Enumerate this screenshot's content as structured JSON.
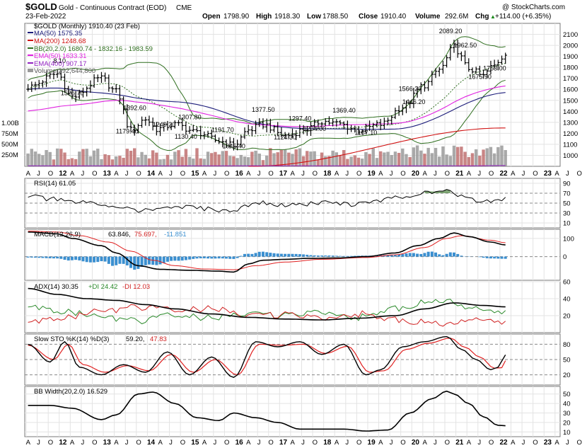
{
  "header": {
    "symbol": "$GOLD",
    "name": "Gold - Continuous Contract (EOD)",
    "exchange": "CME",
    "copyright": "@ StockCharts.com",
    "date": "23-Feb-2022",
    "open_label": "Open",
    "open": "1798.90",
    "high_label": "High",
    "high": "1918.30",
    "low_label": "Low",
    "low": "1788.50",
    "close_label": "Close",
    "close": "1910.40",
    "volume_label": "Volume",
    "volume": "292.6M",
    "chg_label": "Chg",
    "chg": "+114.00 (+6.35%)",
    "chg_arrow": "▲"
  },
  "legend": {
    "price": "$GOLD (Monthly) 1910.40 (23 Feb)",
    "ma50": "MA(50) 1575.35",
    "ma200": "MA(200) 1248.68",
    "bb": "BB(20,2.0) 1680.74 - 1832.16 - 1983.59",
    "ema50": "EMA(50) 1633.31",
    "ema400": "EMA(400) 907.17",
    "volume": "Volume 292,644,800",
    "rsi": "RSI(14) 61.05",
    "macd_name": "MACD(12,26,9)",
    "macd_v1": "63.846,",
    "macd_v2": "75.697,",
    "macd_v3": "-11.851",
    "adx_name": "ADX(14) 30.35",
    "adx_pdi": "+DI 24.42",
    "adx_mdi": "-DI 12.03",
    "sto_name": "Slow STO %K(14) %D(3)",
    "sto_k": "59.20,",
    "sto_d": "47.83",
    "bbw": "BB Width(20,2.0) 16.529"
  },
  "colors": {
    "price": "#000000",
    "ma50": "#1c1c7a",
    "ma200": "#d01010",
    "bb": "#2e6e1e",
    "ema50": "#e020e0",
    "ema400": "#9020c0",
    "volume_up": "#9a9a9a",
    "volume_down": "#c07070",
    "signal": "#e02020",
    "hist": "#3a8fd0",
    "pdi": "#2a8a2a",
    "mdi": "#d02020"
  },
  "chart_data": [
    {
      "type": "line",
      "panel": "price",
      "ylim": [
        900,
        2200
      ],
      "y_ticks": [
        1000,
        1100,
        1200,
        1300,
        1400,
        1500,
        1600,
        1700,
        1800,
        1900,
        2000,
        2100
      ],
      "volume_ticks": [
        "1.00B",
        "750M",
        "500M",
        "250M"
      ],
      "x_month_labels": [
        "A",
        "J",
        "O",
        "12",
        "A",
        "J",
        "O",
        "13",
        "A",
        "J",
        "O",
        "14",
        "A",
        "J",
        "O",
        "15",
        "A",
        "J",
        "O",
        "16",
        "A",
        "J",
        "O",
        "17",
        "A",
        "J",
        "O",
        "18",
        "A",
        "J",
        "O",
        "19",
        "A",
        "J",
        "O",
        "20",
        "A",
        "J",
        "O",
        "21",
        "A",
        "J",
        "O",
        "22",
        "A",
        "J",
        "O",
        "23",
        "A",
        "J",
        "O"
      ],
      "close_anchor_times": [
        0,
        8,
        12,
        20,
        24,
        28,
        32,
        35,
        40,
        46,
        52,
        56,
        60,
        64,
        70,
        76,
        80,
        84,
        90,
        96,
        102,
        108,
        112,
        116,
        120,
        124,
        126,
        130
      ],
      "close_anchor_values": [
        1620,
        1740,
        1530,
        1700,
        1580,
        1230,
        1330,
        1240,
        1280,
        1210,
        1130,
        1090,
        1230,
        1280,
        1180,
        1240,
        1310,
        1290,
        1230,
        1280,
        1440,
        1640,
        1780,
        1980,
        1790,
        1720,
        1800,
        1910
      ],
      "price_annotations": [
        {
          "label": "1526.70",
          "t": 12,
          "v": 1526.7
        },
        {
          "label": "1392.60",
          "t": 29,
          "v": 1392.6
        },
        {
          "label": "1179.40",
          "t": 27,
          "v": 1179.4
        },
        {
          "label": "1240.20",
          "t": 37,
          "v": 1240.2
        },
        {
          "label": "1307.80",
          "t": 44,
          "v": 1307.8
        },
        {
          "label": "1130.40",
          "t": 43,
          "v": 1130.4
        },
        {
          "label": "1191.70",
          "t": 53,
          "v": 1191.7
        },
        {
          "label": "1045.40",
          "t": 56,
          "v": 1045.4
        },
        {
          "label": "1377.50",
          "t": 64,
          "v": 1377.5
        },
        {
          "label": "1124.30",
          "t": 70,
          "v": 1124.3
        },
        {
          "label": "1297.40",
          "t": 74,
          "v": 1297.4
        },
        {
          "label": "1204.00",
          "t": 78,
          "v": 1204.0
        },
        {
          "label": "1369.40",
          "t": 86,
          "v": 1369.4
        },
        {
          "label": "1167.10",
          "t": 92,
          "v": 1167.1
        },
        {
          "label": "1446.20",
          "t": 105,
          "v": 1446.2
        },
        {
          "label": "1566.20",
          "t": 104,
          "v": 1566.2
        },
        {
          "label": "2089.20",
          "t": 115,
          "v": 2089.2
        },
        {
          "label": "1962.50",
          "t": 119,
          "v": 1962.5
        },
        {
          "label": "1675.90",
          "t": 123,
          "v": 1675.9
        },
        {
          "label": "1753.00",
          "t": 127,
          "v": 1753.0
        },
        {
          "label": "8.10",
          "t": 10,
          "v": 1820
        }
      ]
    },
    {
      "type": "line",
      "panel": "rsi",
      "name": "RSI(14)",
      "ylim": [
        0,
        100
      ],
      "y_ticks": [
        90,
        70,
        50,
        30,
        10
      ],
      "anchor_times": [
        0,
        6,
        12,
        24,
        30,
        40,
        50,
        56,
        62,
        70,
        80,
        90,
        100,
        108,
        114,
        118,
        124,
        128,
        130
      ],
      "anchor_values": [
        65,
        58,
        52,
        45,
        35,
        42,
        38,
        33,
        52,
        45,
        50,
        48,
        60,
        72,
        78,
        62,
        52,
        55,
        61.05
      ]
    },
    {
      "type": "line",
      "panel": "macd",
      "name": "MACD(12,26,9)",
      "ylim": [
        -130,
        150
      ],
      "y_ticks": [
        100,
        0
      ],
      "macd_times": [
        0,
        8,
        12,
        20,
        24,
        30,
        36,
        44,
        52,
        56,
        60,
        64,
        70,
        76,
        84,
        92,
        100,
        106,
        112,
        116,
        120,
        126,
        130
      ],
      "macd_values": [
        135,
        125,
        100,
        60,
        20,
        -50,
        -70,
        -75,
        -80,
        -85,
        -40,
        -20,
        -15,
        -10,
        -8,
        0,
        20,
        60,
        100,
        130,
        110,
        80,
        64
      ],
      "signal_times": [
        0,
        8,
        14,
        22,
        28,
        34,
        40,
        48,
        56,
        62,
        70,
        80,
        92,
        100,
        108,
        114,
        118,
        126,
        130
      ],
      "signal_values": [
        140,
        135,
        115,
        80,
        30,
        -20,
        -50,
        -68,
        -72,
        -50,
        -30,
        -15,
        -5,
        10,
        50,
        100,
        115,
        90,
        76
      ]
    },
    {
      "type": "line",
      "panel": "adx",
      "name": "ADX(14)",
      "ylim": [
        0,
        60
      ],
      "y_ticks": [
        60,
        40,
        20
      ],
      "adx_times": [
        0,
        8,
        16,
        24,
        32,
        40,
        50,
        60,
        70,
        80,
        90,
        100,
        108,
        116,
        124,
        130
      ],
      "adx_values": [
        52,
        45,
        40,
        38,
        33,
        28,
        22,
        18,
        16,
        15,
        17,
        20,
        28,
        35,
        32,
        30.35
      ],
      "pdi_times": [
        0,
        10,
        20,
        30,
        40,
        50,
        60,
        70,
        80,
        90,
        100,
        108,
        114,
        120,
        126,
        130
      ],
      "pdi_values": [
        30,
        25,
        18,
        14,
        20,
        17,
        22,
        20,
        25,
        18,
        28,
        35,
        38,
        28,
        24,
        24.42
      ],
      "mdi_times": [
        0,
        10,
        20,
        30,
        40,
        50,
        60,
        70,
        80,
        90,
        100,
        108,
        114,
        120,
        126,
        130
      ],
      "mdi_values": [
        12,
        18,
        25,
        30,
        26,
        28,
        20,
        21,
        18,
        22,
        15,
        12,
        10,
        14,
        13,
        12.03
      ]
    },
    {
      "type": "line",
      "panel": "stochastic",
      "name": "Slow STO %K(14) %D(3)",
      "ylim": [
        0,
        100
      ],
      "y_ticks": [
        80,
        50,
        20
      ],
      "k_times": [
        0,
        6,
        10,
        14,
        20,
        26,
        32,
        38,
        44,
        50,
        56,
        62,
        68,
        74,
        80,
        86,
        92,
        96,
        102,
        108,
        114,
        118,
        122,
        126,
        128,
        130
      ],
      "k_values": [
        80,
        45,
        85,
        35,
        20,
        40,
        25,
        65,
        20,
        55,
        15,
        85,
        75,
        85,
        60,
        80,
        20,
        30,
        75,
        85,
        95,
        70,
        50,
        30,
        35,
        59.2
      ],
      "d_times": [
        0,
        7,
        11,
        15,
        21,
        27,
        33,
        39,
        45,
        51,
        57,
        63,
        69,
        75,
        81,
        87,
        93,
        97,
        103,
        109,
        115,
        119,
        123,
        127,
        129,
        130
      ],
      "d_values": [
        78,
        50,
        80,
        40,
        25,
        38,
        28,
        60,
        25,
        50,
        20,
        80,
        78,
        80,
        62,
        76,
        25,
        28,
        70,
        82,
        92,
        74,
        55,
        33,
        34,
        47.83
      ]
    },
    {
      "type": "line",
      "panel": "bbwidth",
      "name": "BB Width(20,2.0)",
      "ylim": [
        5,
        58
      ],
      "y_ticks": [
        50,
        40,
        30,
        20,
        10
      ],
      "times": [
        0,
        6,
        12,
        20,
        24,
        30,
        34,
        40,
        46,
        52,
        56,
        62,
        68,
        74,
        80,
        86,
        92,
        98,
        104,
        110,
        114,
        116,
        120,
        124,
        128,
        130
      ],
      "values": [
        38,
        38,
        35,
        23,
        28,
        50,
        52,
        40,
        25,
        22,
        30,
        25,
        20,
        13,
        13,
        13,
        11,
        12,
        30,
        45,
        53,
        50,
        40,
        26,
        17,
        16.529
      ]
    }
  ]
}
